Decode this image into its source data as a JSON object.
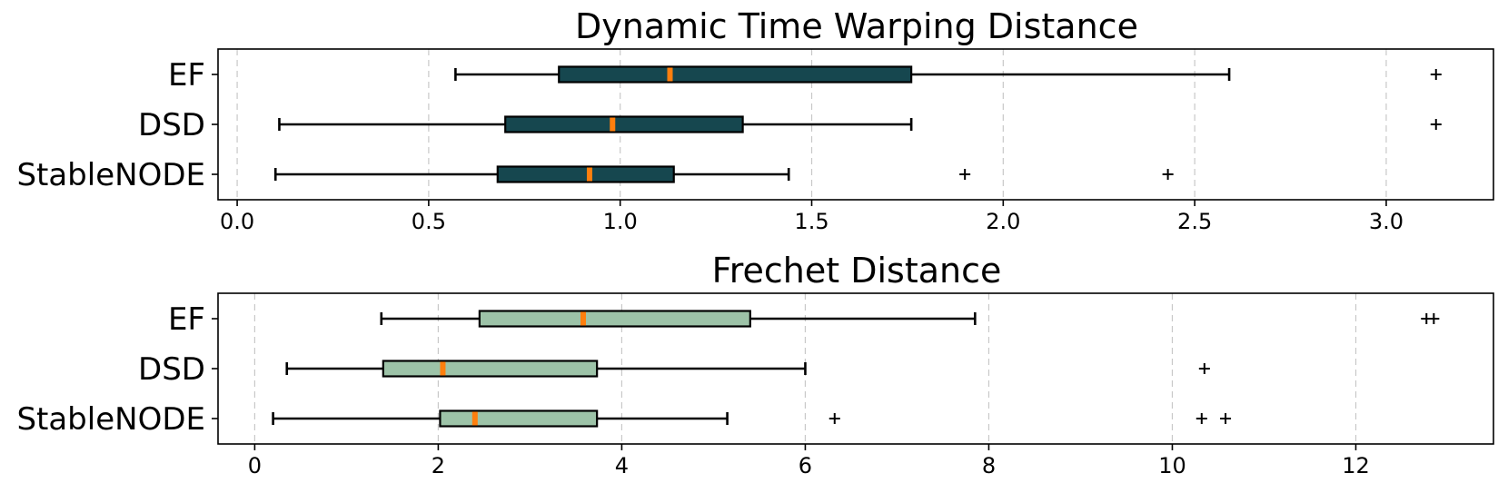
{
  "chart_data": [
    {
      "type": "box",
      "title": "Dynamic Time Warping Distance",
      "orientation": "horizontal",
      "box_color": "#16474f",
      "median_color": "#ff7f0e",
      "categories": [
        "EF",
        "DSD",
        "StableNODE"
      ],
      "xlim": [
        -0.05,
        3.28
      ],
      "xticks": [
        0.0,
        0.5,
        1.0,
        1.5,
        2.0,
        2.5,
        3.0
      ],
      "xtick_labels": [
        "0.0",
        "0.5",
        "1.0",
        "1.5",
        "2.0",
        "2.5",
        "3.0"
      ],
      "grid": "x",
      "boxes": [
        {
          "label": "EF",
          "whisker_low": 0.57,
          "q1": 0.84,
          "median": 1.13,
          "q3": 1.76,
          "whisker_high": 2.59,
          "outliers": [
            3.13
          ]
        },
        {
          "label": "DSD",
          "whisker_low": 0.11,
          "q1": 0.7,
          "median": 0.98,
          "q3": 1.32,
          "whisker_high": 1.76,
          "outliers": [
            3.13
          ]
        },
        {
          "label": "StableNODE",
          "whisker_low": 0.1,
          "q1": 0.68,
          "median": 0.92,
          "q3": 1.14,
          "whisker_high": 1.44,
          "outliers": [
            1.9,
            2.43
          ]
        }
      ]
    },
    {
      "type": "box",
      "title": "Frechet Distance",
      "orientation": "horizontal",
      "box_color": "#9dc3a8",
      "median_color": "#ff7f0e",
      "categories": [
        "EF",
        "DSD",
        "StableNODE"
      ],
      "xlim": [
        -0.4,
        13.5
      ],
      "xticks": [
        0,
        2,
        4,
        6,
        8,
        10,
        12
      ],
      "xtick_labels": [
        "0",
        "2",
        "4",
        "6",
        "8",
        "10",
        "12"
      ],
      "grid": "x",
      "boxes": [
        {
          "label": "EF",
          "whisker_low": 1.38,
          "q1": 2.45,
          "median": 3.58,
          "q3": 5.4,
          "whisker_high": 7.85,
          "outliers": [
            12.77,
            12.85
          ]
        },
        {
          "label": "DSD",
          "whisker_low": 0.35,
          "q1": 1.4,
          "median": 2.05,
          "q3": 3.73,
          "whisker_high": 6.0,
          "outliers": [
            10.35
          ]
        },
        {
          "label": "StableNODE",
          "whisker_low": 0.2,
          "q1": 2.02,
          "median": 2.4,
          "q3": 3.73,
          "whisker_high": 5.15,
          "outliers": [
            6.32,
            10.32,
            10.58
          ]
        }
      ]
    }
  ]
}
